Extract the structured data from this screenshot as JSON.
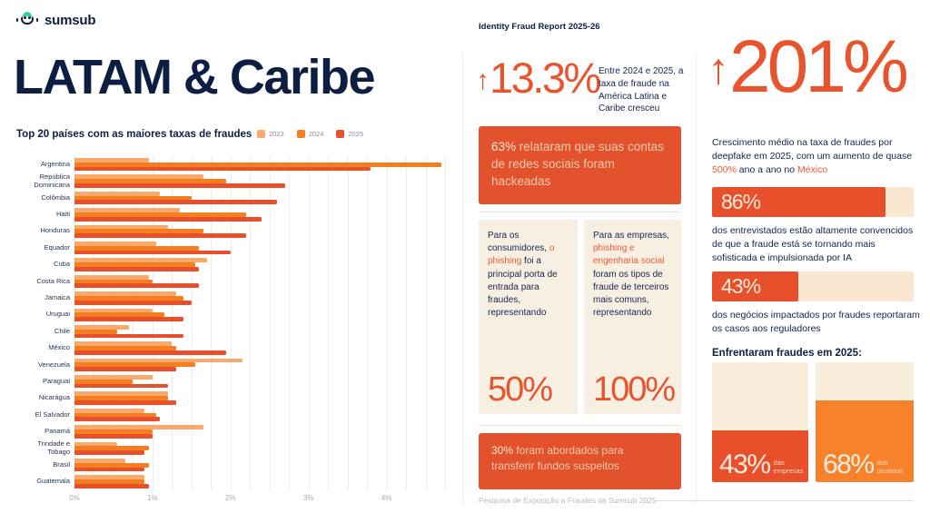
{
  "header": {
    "logo_text": "sumsub",
    "report_title": "Identity Fraud Report 2025-26"
  },
  "colors": {
    "navy": "#0E1E42",
    "accent": "#E8502B",
    "orange_2024": "#F57E20",
    "orange_2023": "#F9A96B",
    "cream_card": "#F6EFE2",
    "banner_bg": "#E1522D"
  },
  "left": {
    "title": "LATAM & Caribe",
    "chart_title": "Top 20 países com as maiores taxas de fraudes"
  },
  "chart_data": {
    "type": "bar",
    "orientation": "horizontal",
    "title": "Top 20 países com as maiores taxas de fraudes",
    "unit": "%",
    "xlim": [
      0,
      4.75
    ],
    "grid_step": 0.25,
    "grid": true,
    "legend_position": "top-right",
    "categories": [
      "Argentina",
      "República Dominicana",
      "Colômbia",
      "Haiti",
      "Honduras",
      "Equador",
      "Cuba",
      "Costa Rica",
      "Jamaica",
      "Uruguai",
      "Chile",
      "México",
      "Venezuela",
      "Paraguai",
      "Nicarágua",
      "El Salvador",
      "Panamá",
      "Trindade e Tobago",
      "Brasil",
      "Guatemala"
    ],
    "series": [
      {
        "name": "2023",
        "color": "#F9A96B",
        "values": [
          0.95,
          1.65,
          1.1,
          1.35,
          1.2,
          1.05,
          1.7,
          0.95,
          1.3,
          1.0,
          0.7,
          1.25,
          2.15,
          1.0,
          1.2,
          0.9,
          1.65,
          0.55,
          0.65,
          0.9
        ]
      },
      {
        "name": "2024",
        "color": "#F57E20",
        "values": [
          4.7,
          1.95,
          1.5,
          2.2,
          1.65,
          1.6,
          1.55,
          1.0,
          1.4,
          1.15,
          0.55,
          1.3,
          1.55,
          0.75,
          1.2,
          1.05,
          1.0,
          0.95,
          0.95,
          0.9
        ]
      },
      {
        "name": "2025",
        "color": "#E8502B",
        "values": [
          3.8,
          2.7,
          2.6,
          2.4,
          2.2,
          2.0,
          1.6,
          1.6,
          1.5,
          1.4,
          1.4,
          1.95,
          1.3,
          1.2,
          1.3,
          1.1,
          1.0,
          0.9,
          0.9,
          0.95
        ]
      }
    ],
    "x_ticks": [
      {
        "label": "0%",
        "value": 0
      },
      {
        "label": "1%",
        "value": 1
      },
      {
        "label": "2%",
        "value": 2
      },
      {
        "label": "3%",
        "value": 3
      },
      {
        "label": "4%",
        "value": 4
      }
    ]
  },
  "middle": {
    "stat": {
      "arrow": "↑",
      "value": "13.3%",
      "caption": "Entre 2024 e 2025, a taxa de fraude na América Latina e Caribe cresceu"
    },
    "banner_social": {
      "highlight": "63%",
      "text": " relataram que suas contas de redes sociais foram hackeadas"
    },
    "card_consumers": {
      "text_pre": "Para os consumidores, ",
      "text_highlight": "o phishing",
      "text_post": " foi a principal porta de entrada para fraudes, representando",
      "value": "50%"
    },
    "card_companies": {
      "text_pre": "Para as empresas, ",
      "text_highlight": "phishing e engenharia social",
      "text_post": " foram os tipos de fraude de terceiros mais comuns, representando",
      "value": "100%"
    },
    "banner_transfer": {
      "highlight": "30%",
      "text": " foram abordados para transferir fundos suspeitos"
    }
  },
  "right": {
    "stat": {
      "arrow": "↑",
      "value": "201%"
    },
    "caption": {
      "pre": "Crescimento médio na taxa de fraudes por deepfake em 2025, com um aumento de quase ",
      "highlight1": "500%",
      "mid": " ano a ano no ",
      "highlight2": "México"
    },
    "progress_bars": [
      {
        "value": "86%",
        "percent": 86,
        "description": "dos entrevistados estão altamente convencidos de que a fraude está se tornando mais sofisticada e impulsionada por IA"
      },
      {
        "value": "43%",
        "percent": 43,
        "description": "dos negócios impactados por fraudes reportaram os casos aos reguladores"
      }
    ],
    "tiles_heading": "Enfrentaram fraudes em 2025:",
    "tiles": [
      {
        "value": "43%",
        "label": "das empresas",
        "percent": 43,
        "color": "#E8502B"
      },
      {
        "value": "68%",
        "label": "dos usuários",
        "percent": 68,
        "color": "#F6832C"
      }
    ]
  },
  "footer": {
    "text": "Pesquisa de Exposição a Fraudes da Sumsub 2025"
  }
}
